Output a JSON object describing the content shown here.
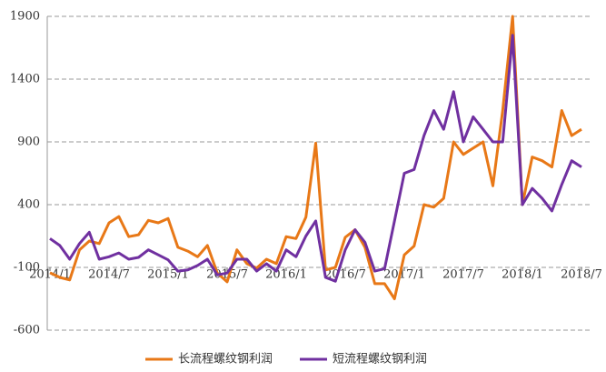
{
  "chart_data": {
    "type": "line",
    "categories": [
      "2014/1",
      null,
      null,
      null,
      null,
      null,
      "2014/7",
      null,
      null,
      null,
      null,
      null,
      "2015/1",
      null,
      null,
      null,
      null,
      null,
      "2015/7",
      null,
      null,
      null,
      null,
      null,
      "2016/1",
      null,
      null,
      null,
      null,
      null,
      "2016/7",
      null,
      null,
      null,
      null,
      null,
      "2017/1",
      null,
      null,
      null,
      null,
      null,
      "2017/7",
      null,
      null,
      null,
      null,
      null,
      "2018/1",
      null,
      null,
      null,
      null,
      null,
      "2018/7"
    ],
    "series": [
      {
        "name": "长流程螺纹钢利润",
        "color": "#e87817",
        "values": [
          -143,
          -180,
          -200,
          40,
          110,
          90,
          255,
          305,
          145,
          160,
          275,
          255,
          290,
          60,
          30,
          -15,
          75,
          -145,
          -215,
          40,
          -70,
          -105,
          -35,
          -70,
          145,
          130,
          300,
          890,
          -120,
          -100,
          140,
          200,
          60,
          -230,
          -230,
          -350,
          0,
          70,
          400,
          380,
          450,
          900,
          800,
          850,
          900,
          550,
          1150,
          1900,
          400,
          780,
          750,
          700,
          1150,
          950,
          1000
        ]
      },
      {
        "name": "短流程螺纹钢利润",
        "color": "#7030a0",
        "values": [
          130,
          75,
          -35,
          90,
          180,
          -35,
          -15,
          15,
          -35,
          -20,
          40,
          0,
          -40,
          -130,
          -120,
          -85,
          -35,
          -160,
          -145,
          -35,
          -35,
          -130,
          -70,
          -130,
          40,
          -15,
          150,
          270,
          -180,
          -210,
          40,
          200,
          100,
          -130,
          -110,
          270,
          650,
          680,
          950,
          1150,
          1000,
          1300,
          900,
          1100,
          1000,
          900,
          900,
          1750,
          400,
          530,
          450,
          350,
          560,
          750,
          700
        ]
      }
    ],
    "ylim": [
      -600,
      1900
    ],
    "yticks": [
      -600,
      -100,
      400,
      900,
      1400,
      1900
    ],
    "grid": true,
    "legend": "bottom"
  }
}
